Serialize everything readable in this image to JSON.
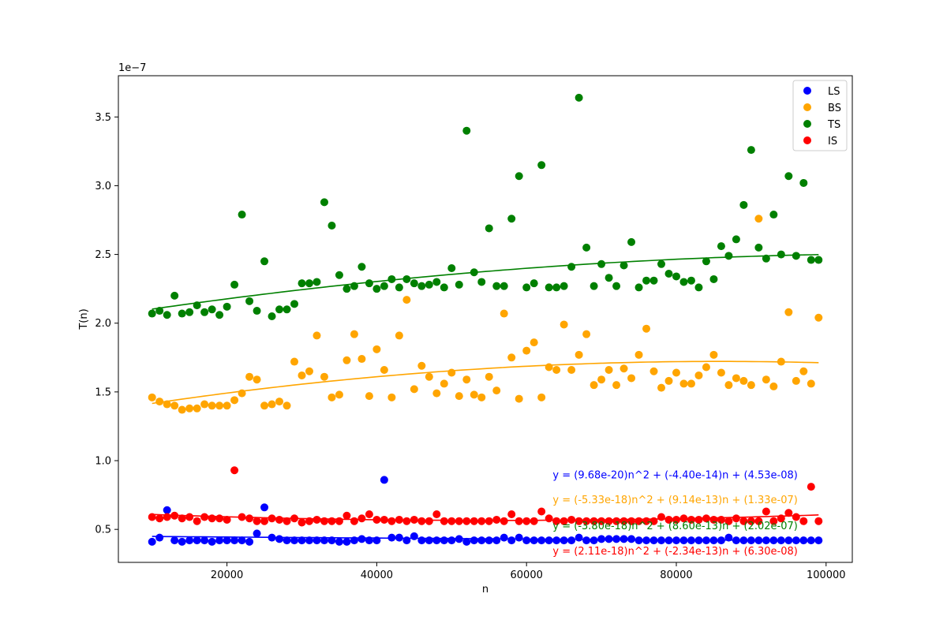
{
  "chart_data": {
    "type": "scatter",
    "title": "",
    "xlabel": "n",
    "ylabel": "T(n)",
    "y_offset_label": "1e−7",
    "xlim": [
      5500,
      103500
    ],
    "ylim": [
      2.6e-08,
      3.8e-07
    ],
    "x_ticks": [
      20000,
      40000,
      60000,
      80000,
      100000
    ],
    "x_tick_labels": [
      "20000",
      "40000",
      "60000",
      "80000",
      "100000"
    ],
    "y_ticks": [
      5e-08,
      1e-07,
      1.5e-07,
      2e-07,
      2.5e-07,
      3e-07,
      3.5e-07
    ],
    "y_tick_labels": [
      "0.5",
      "1.0",
      "1.5",
      "2.0",
      "2.5",
      "3.0",
      "3.5"
    ],
    "grid": false,
    "legend_position": "top-right",
    "x": [
      10000,
      11000,
      12000,
      13000,
      14000,
      15000,
      16000,
      17000,
      18000,
      19000,
      20000,
      21000,
      22000,
      23000,
      24000,
      25000,
      26000,
      27000,
      28000,
      29000,
      30000,
      31000,
      32000,
      33000,
      34000,
      35000,
      36000,
      37000,
      38000,
      39000,
      40000,
      41000,
      42000,
      43000,
      44000,
      45000,
      46000,
      47000,
      48000,
      49000,
      50000,
      51000,
      52000,
      53000,
      54000,
      55000,
      56000,
      57000,
      58000,
      59000,
      60000,
      61000,
      62000,
      63000,
      64000,
      65000,
      66000,
      67000,
      68000,
      69000,
      70000,
      71000,
      72000,
      73000,
      74000,
      75000,
      76000,
      77000,
      78000,
      79000,
      80000,
      81000,
      82000,
      83000,
      84000,
      85000,
      86000,
      87000,
      88000,
      89000,
      90000,
      91000,
      92000,
      93000,
      94000,
      95000,
      96000,
      97000,
      98000,
      99000
    ],
    "series": [
      {
        "name": "LS",
        "color": "#0000ff",
        "values": [
          4.1e-08,
          4.4e-08,
          6.4e-08,
          4.2e-08,
          4.1e-08,
          4.2e-08,
          4.2e-08,
          4.2e-08,
          4.1e-08,
          4.2e-08,
          4.2e-08,
          4.2e-08,
          4.2e-08,
          4.1e-08,
          4.7e-08,
          6.6e-08,
          4.4e-08,
          4.3e-08,
          4.2e-08,
          4.2e-08,
          4.2e-08,
          4.2e-08,
          4.2e-08,
          4.2e-08,
          4.2e-08,
          4.1e-08,
          4.1e-08,
          4.2e-08,
          4.3e-08,
          4.2e-08,
          4.2e-08,
          8.6e-08,
          4.4e-08,
          4.4e-08,
          4.2e-08,
          4.5e-08,
          4.2e-08,
          4.2e-08,
          4.2e-08,
          4.2e-08,
          4.2e-08,
          4.3e-08,
          4.1e-08,
          4.2e-08,
          4.2e-08,
          4.2e-08,
          4.2e-08,
          4.4e-08,
          4.2e-08,
          4.4e-08,
          4.2e-08,
          4.2e-08,
          4.2e-08,
          4.2e-08,
          4.2e-08,
          4.2e-08,
          4.2e-08,
          4.4e-08,
          4.2e-08,
          4.2e-08,
          4.3e-08,
          4.3e-08,
          4.3e-08,
          4.3e-08,
          4.3e-08,
          4.2e-08,
          4.2e-08,
          4.2e-08,
          4.2e-08,
          4.2e-08,
          4.2e-08,
          4.2e-08,
          4.2e-08,
          4.2e-08,
          4.2e-08,
          4.2e-08,
          4.2e-08,
          4.4e-08,
          4.2e-08,
          4.2e-08,
          4.2e-08,
          4.2e-08,
          4.2e-08,
          4.2e-08,
          4.2e-08,
          4.2e-08,
          4.2e-08,
          4.2e-08,
          4.2e-08,
          4.2e-08
        ]
      },
      {
        "name": "BS",
        "color": "#ffa500",
        "values": [
          1.46e-07,
          1.43e-07,
          1.41e-07,
          1.4e-07,
          1.37e-07,
          1.38e-07,
          1.38e-07,
          1.41e-07,
          1.4e-07,
          1.4e-07,
          1.4e-07,
          1.44e-07,
          1.49e-07,
          1.61e-07,
          1.59e-07,
          1.4e-07,
          1.41e-07,
          1.43e-07,
          1.4e-07,
          1.72e-07,
          1.62e-07,
          1.65e-07,
          1.91e-07,
          1.61e-07,
          1.46e-07,
          1.48e-07,
          1.73e-07,
          1.92e-07,
          1.74e-07,
          1.47e-07,
          1.81e-07,
          1.66e-07,
          1.46e-07,
          1.91e-07,
          2.17e-07,
          1.52e-07,
          1.69e-07,
          1.61e-07,
          1.49e-07,
          1.56e-07,
          1.64e-07,
          1.47e-07,
          1.59e-07,
          1.48e-07,
          1.46e-07,
          1.61e-07,
          1.51e-07,
          2.07e-07,
          1.75e-07,
          1.45e-07,
          1.8e-07,
          1.86e-07,
          1.46e-07,
          1.68e-07,
          1.66e-07,
          1.99e-07,
          1.66e-07,
          1.77e-07,
          1.92e-07,
          1.55e-07,
          1.59e-07,
          1.66e-07,
          1.55e-07,
          1.67e-07,
          1.6e-07,
          1.77e-07,
          1.96e-07,
          1.65e-07,
          1.53e-07,
          1.58e-07,
          1.64e-07,
          1.56e-07,
          1.56e-07,
          1.62e-07,
          1.68e-07,
          1.77e-07,
          1.64e-07,
          1.55e-07,
          1.6e-07,
          1.58e-07,
          1.55e-07,
          2.76e-07,
          1.59e-07,
          1.54e-07,
          1.72e-07,
          2.08e-07,
          1.58e-07,
          1.65e-07,
          1.56e-07,
          2.04e-07
        ]
      },
      {
        "name": "TS",
        "color": "#008000",
        "values": [
          2.07e-07,
          2.09e-07,
          2.06e-07,
          2.2e-07,
          2.07e-07,
          2.08e-07,
          2.13e-07,
          2.08e-07,
          2.1e-07,
          2.06e-07,
          2.12e-07,
          2.28e-07,
          2.79e-07,
          2.16e-07,
          2.09e-07,
          2.45e-07,
          2.05e-07,
          2.1e-07,
          2.1e-07,
          2.14e-07,
          2.29e-07,
          2.29e-07,
          2.3e-07,
          2.88e-07,
          2.71e-07,
          2.35e-07,
          2.25e-07,
          2.27e-07,
          2.41e-07,
          2.29e-07,
          2.25e-07,
          2.27e-07,
          2.32e-07,
          2.26e-07,
          2.32e-07,
          2.29e-07,
          2.27e-07,
          2.28e-07,
          2.3e-07,
          2.26e-07,
          2.4e-07,
          2.28e-07,
          3.4e-07,
          2.37e-07,
          2.3e-07,
          2.69e-07,
          2.27e-07,
          2.27e-07,
          2.76e-07,
          3.07e-07,
          2.26e-07,
          2.29e-07,
          3.15e-07,
          2.26e-07,
          2.26e-07,
          2.27e-07,
          2.41e-07,
          3.64e-07,
          2.55e-07,
          2.27e-07,
          2.43e-07,
          2.33e-07,
          2.27e-07,
          2.42e-07,
          2.59e-07,
          2.26e-07,
          2.31e-07,
          2.31e-07,
          2.43e-07,
          2.36e-07,
          2.34e-07,
          2.3e-07,
          2.31e-07,
          2.26e-07,
          2.45e-07,
          2.32e-07,
          2.56e-07,
          2.49e-07,
          2.61e-07,
          2.86e-07,
          3.26e-07,
          2.55e-07,
          2.47e-07,
          2.79e-07,
          2.5e-07,
          3.07e-07,
          2.49e-07,
          3.02e-07,
          2.46e-07,
          2.46e-07
        ]
      },
      {
        "name": "IS",
        "color": "#ff0000",
        "values": [
          5.9e-08,
          5.8e-08,
          5.9e-08,
          6e-08,
          5.8e-08,
          5.9e-08,
          5.6e-08,
          5.9e-08,
          5.8e-08,
          5.8e-08,
          5.7e-08,
          9.3e-08,
          5.9e-08,
          5.8e-08,
          5.6e-08,
          5.6e-08,
          5.8e-08,
          5.7e-08,
          5.6e-08,
          5.8e-08,
          5.5e-08,
          5.6e-08,
          5.7e-08,
          5.6e-08,
          5.6e-08,
          5.6e-08,
          6e-08,
          5.6e-08,
          5.8e-08,
          6.1e-08,
          5.7e-08,
          5.7e-08,
          5.6e-08,
          5.7e-08,
          5.6e-08,
          5.7e-08,
          5.6e-08,
          5.6e-08,
          6.1e-08,
          5.6e-08,
          5.6e-08,
          5.6e-08,
          5.6e-08,
          5.6e-08,
          5.6e-08,
          5.6e-08,
          5.7e-08,
          5.6e-08,
          6.1e-08,
          5.6e-08,
          5.6e-08,
          5.6e-08,
          6.3e-08,
          5.8e-08,
          5.6e-08,
          5.6e-08,
          5.7e-08,
          5.6e-08,
          5.6e-08,
          5.6e-08,
          5.6e-08,
          5.6e-08,
          5.6e-08,
          5.6e-08,
          5.6e-08,
          5.6e-08,
          5.6e-08,
          5.6e-08,
          5.9e-08,
          5.7e-08,
          5.7e-08,
          5.8e-08,
          5.7e-08,
          5.7e-08,
          5.8e-08,
          5.7e-08,
          5.7e-08,
          5.6e-08,
          5.8e-08,
          5.6e-08,
          5.6e-08,
          5.6e-08,
          6.3e-08,
          5.6e-08,
          5.8e-08,
          6.2e-08,
          5.9e-08,
          5.6e-08,
          8.1e-08,
          5.6e-08
        ]
      }
    ],
    "fits": [
      {
        "series": "LS",
        "color": "#0000ff",
        "a": 9.68e-20,
        "b": -4.4e-14,
        "c": 4.53e-08,
        "label": "y = (9.68e-20)n^2 + (-4.40e-14)n + (4.53e-08)"
      },
      {
        "series": "BS",
        "color": "#ffa500",
        "a": -5.33e-18,
        "b": 9.14e-13,
        "c": 1.33e-07,
        "label": "y = (-5.33e-18)n^2 + (9.14e-13)n + (1.33e-07)"
      },
      {
        "series": "TS",
        "color": "#008000",
        "a": -3.8e-18,
        "b": 8.6e-13,
        "c": 2.02e-07,
        "label": "y = (-3.80e-18)n^2 + (8.60e-13)n + (2.02e-07)"
      },
      {
        "series": "IS",
        "color": "#ff0000",
        "a": 2.11e-18,
        "b": -2.34e-13,
        "c": 6.3e-08,
        "label": "y = (2.11e-18)n^2 + (-2.34e-13)n + (6.30e-08)"
      }
    ]
  }
}
